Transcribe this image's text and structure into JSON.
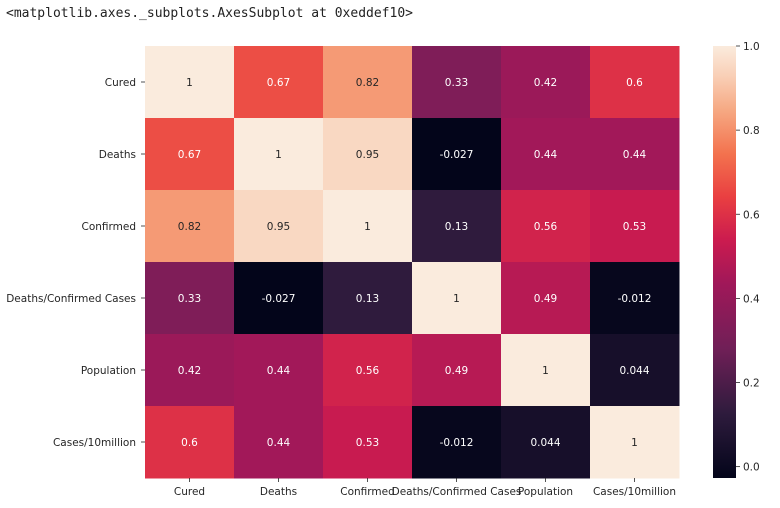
{
  "header": {
    "repr_text": "<matplotlib.axes._subplots.AxesSubplot at 0xeddef10>"
  },
  "chart_data": {
    "type": "heatmap",
    "title": "",
    "xlabel": "",
    "ylabel": "",
    "rows": [
      "Cured",
      "Deaths",
      "Confirmed",
      "Deaths/Confirmed Cases",
      "Population",
      "Cases/10million"
    ],
    "columns": [
      "Cured",
      "Deaths",
      "Confirmed",
      "Deaths/Confirmed Cases",
      "Population",
      "Cases/10million"
    ],
    "values": [
      [
        1,
        0.67,
        0.82,
        0.33,
        0.42,
        0.6
      ],
      [
        0.67,
        1,
        0.95,
        -0.027,
        0.44,
        0.44
      ],
      [
        0.82,
        0.95,
        1,
        0.13,
        0.56,
        0.53
      ],
      [
        0.33,
        -0.027,
        0.13,
        1,
        0.49,
        -0.012
      ],
      [
        0.42,
        0.44,
        0.56,
        0.49,
        1,
        0.044
      ],
      [
        0.6,
        0.44,
        0.53,
        -0.012,
        0.044,
        1
      ]
    ],
    "labels": [
      [
        "1",
        "0.67",
        "0.82",
        "0.33",
        "0.42",
        "0.6"
      ],
      [
        "0.67",
        "1",
        "0.95",
        "-0.027",
        "0.44",
        "0.44"
      ],
      [
        "0.82",
        "0.95",
        "1",
        "0.13",
        "0.56",
        "0.53"
      ],
      [
        "0.33",
        "-0.027",
        "0.13",
        "1",
        "0.49",
        "-0.012"
      ],
      [
        "0.42",
        "0.44",
        "0.56",
        "0.49",
        "1",
        "0.044"
      ],
      [
        "0.6",
        "0.44",
        "0.53",
        "-0.012",
        "0.044",
        "1"
      ]
    ],
    "colorbar": {
      "vmin": -0.027,
      "vmax": 1.0,
      "ticks": [
        0.0,
        0.2,
        0.4,
        0.6,
        0.8,
        1.0
      ],
      "tick_labels": [
        "0.0",
        "0.2",
        "0.4",
        "0.6",
        "0.8",
        "1.0"
      ],
      "colormap": "rocket"
    }
  }
}
